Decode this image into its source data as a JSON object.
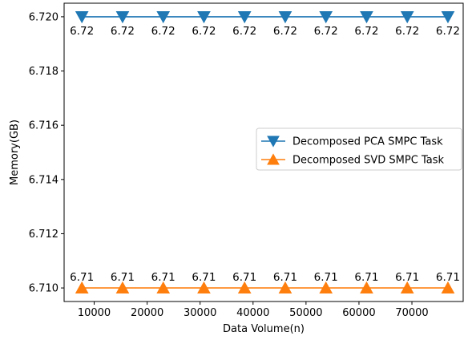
{
  "chart_data": {
    "type": "line",
    "title": "",
    "xlabel": "Data Volume(n)",
    "ylabel": "Memory(GB)",
    "xlim": [
      4320,
      79680
    ],
    "ylim": [
      6.7095,
      6.7205
    ],
    "x": [
      7680,
      15360,
      23040,
      30720,
      38400,
      46080,
      53760,
      61440,
      69120,
      76800
    ],
    "x_ticks": [
      10000,
      20000,
      30000,
      40000,
      50000,
      60000,
      70000
    ],
    "y_ticks": [
      6.71,
      6.712,
      6.714,
      6.716,
      6.718,
      6.72
    ],
    "x_tick_labels": [
      "10000",
      "20000",
      "30000",
      "40000",
      "50000",
      "60000",
      "70000"
    ],
    "y_tick_labels": [
      "6.710",
      "6.712",
      "6.714",
      "6.716",
      "6.718",
      "6.720"
    ],
    "series": [
      {
        "name": "Decomposed PCA SMPC Task",
        "values": [
          6.72,
          6.72,
          6.72,
          6.72,
          6.72,
          6.72,
          6.72,
          6.72,
          6.72,
          6.72
        ],
        "data_labels": [
          "6.72",
          "6.72",
          "6.72",
          "6.72",
          "6.72",
          "6.72",
          "6.72",
          "6.72",
          "6.72",
          "6.72"
        ],
        "color": "#1f77b4",
        "marker": "triangle-down"
      },
      {
        "name": "Decomposed SVD SMPC Task",
        "values": [
          6.71,
          6.71,
          6.71,
          6.71,
          6.71,
          6.71,
          6.71,
          6.71,
          6.71,
          6.71
        ],
        "data_labels": [
          "6.71",
          "6.71",
          "6.71",
          "6.71",
          "6.71",
          "6.71",
          "6.71",
          "6.71",
          "6.71",
          "6.71"
        ],
        "color": "#ff7f0e",
        "marker": "triangle-up"
      }
    ],
    "legend": {
      "position": "center-right"
    },
    "grid": false
  }
}
